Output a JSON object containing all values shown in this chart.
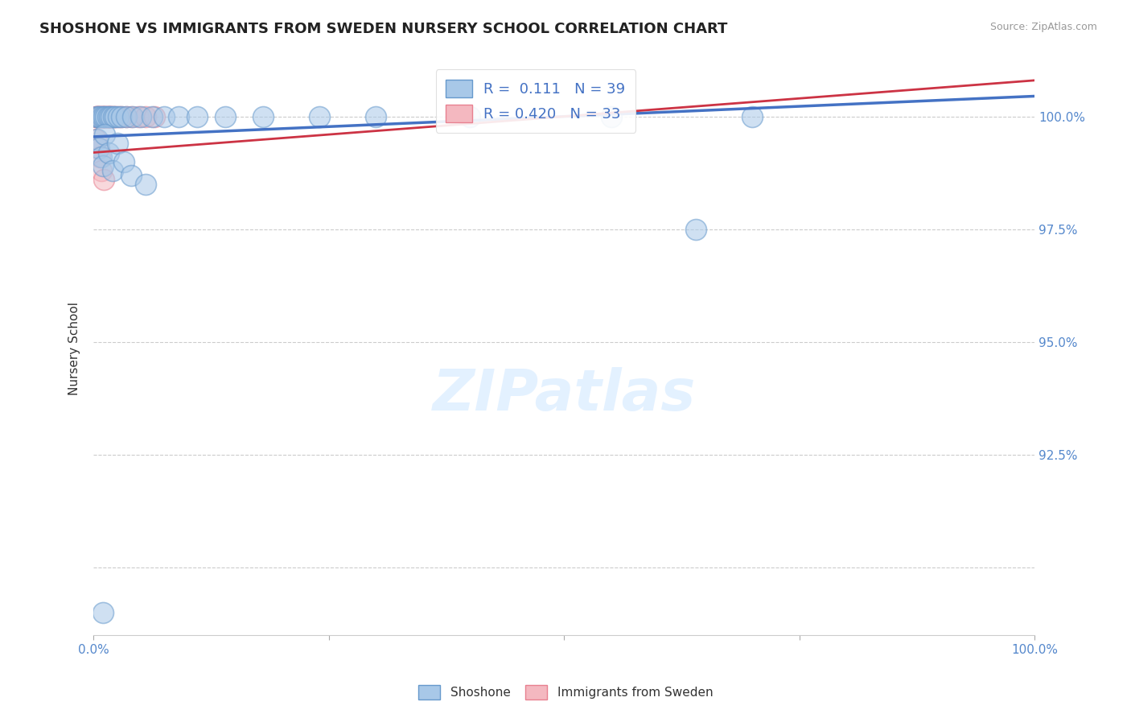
{
  "title": "SHOSHONE VS IMMIGRANTS FROM SWEDEN NURSERY SCHOOL CORRELATION CHART",
  "source": "Source: ZipAtlas.com",
  "ylabel": "Nursery School",
  "xlim": [
    0.0,
    100.0
  ],
  "ylim": [
    88.5,
    101.2
  ],
  "ytick_vals": [
    90.0,
    92.5,
    95.0,
    97.5,
    100.0
  ],
  "ytick_labels": [
    "",
    "92.5%",
    "95.0%",
    "97.5%",
    "100.0%"
  ],
  "legend_shoshone": "Shoshone",
  "legend_immigrants": "Immigrants from Sweden",
  "R_shoshone": 0.111,
  "N_shoshone": 39,
  "R_immigrants": 0.42,
  "N_immigrants": 33,
  "color_shoshone_fill": "#a8c8e8",
  "color_shoshone_edge": "#6699cc",
  "color_immigrants_fill": "#f4b8c0",
  "color_immigrants_edge": "#e88090",
  "color_line_shoshone": "#4472c4",
  "color_line_immigrants": "#cc3344",
  "background_color": "#ffffff",
  "tick_label_color": "#5588cc",
  "shoshone_x": [
    0.3,
    0.5,
    0.7,
    0.9,
    1.1,
    1.3,
    1.5,
    1.7,
    1.9,
    2.1,
    2.3,
    2.6,
    3.0,
    3.5,
    4.2,
    5.0,
    6.2,
    7.5,
    9.0,
    11.0,
    14.0,
    18.0,
    24.0,
    30.0,
    40.0,
    55.0,
    70.0,
    0.4,
    0.6,
    0.8,
    1.0,
    1.2,
    1.6,
    2.0,
    2.5,
    3.2,
    4.0,
    5.5,
    64.0
  ],
  "shoshone_y": [
    100.0,
    100.0,
    100.0,
    100.0,
    100.0,
    100.0,
    100.0,
    100.0,
    100.0,
    100.0,
    100.0,
    100.0,
    100.0,
    100.0,
    100.0,
    100.0,
    100.0,
    100.0,
    100.0,
    100.0,
    100.0,
    100.0,
    100.0,
    100.0,
    100.0,
    100.0,
    100.0,
    99.5,
    99.3,
    99.1,
    98.9,
    99.6,
    99.2,
    98.8,
    99.4,
    99.0,
    98.7,
    98.5,
    97.5
  ],
  "immigrants_x": [
    0.2,
    0.3,
    0.4,
    0.5,
    0.6,
    0.7,
    0.8,
    0.9,
    1.0,
    1.1,
    1.2,
    1.3,
    1.4,
    1.5,
    1.6,
    1.7,
    1.8,
    1.9,
    2.0,
    2.2,
    2.4,
    2.7,
    3.0,
    3.5,
    4.0,
    4.8,
    5.5,
    6.5,
    0.25,
    0.45,
    0.65,
    0.85,
    1.05
  ],
  "immigrants_y": [
    100.0,
    100.0,
    100.0,
    100.0,
    100.0,
    100.0,
    100.0,
    100.0,
    100.0,
    100.0,
    100.0,
    100.0,
    100.0,
    100.0,
    100.0,
    100.0,
    100.0,
    100.0,
    100.0,
    100.0,
    100.0,
    100.0,
    100.0,
    100.0,
    100.0,
    100.0,
    100.0,
    100.0,
    99.5,
    99.3,
    99.1,
    98.8,
    98.6
  ],
  "shoshone_outlier_x": 1.0,
  "shoshone_outlier_y": 89.0,
  "line_shoshone_x0": 0.0,
  "line_shoshone_y0": 99.55,
  "line_shoshone_x1": 100.0,
  "line_shoshone_y1": 100.45,
  "line_immigrants_x0": 0.0,
  "line_immigrants_y0": 99.2,
  "line_immigrants_x1": 100.0,
  "line_immigrants_y1": 100.8,
  "watermark_text": "ZIPatlas",
  "watermark_color": "#ddeeff"
}
